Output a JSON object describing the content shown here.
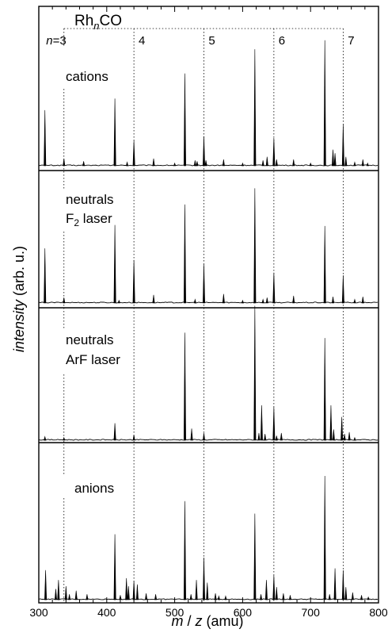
{
  "chart_data": {
    "type": "line",
    "xlabel": {
      "m": "m",
      "slash": " / ",
      "z": "z",
      "unit": " (amu)"
    },
    "ylabel": {
      "italic": "intensity",
      "rest": " (arb. u.)"
    },
    "xlim": [
      300,
      800
    ],
    "x_ticks": [
      300,
      400,
      500,
      600,
      700,
      800
    ],
    "x_tick_labels": [
      "300",
      "400",
      "500",
      "600",
      "700",
      "800"
    ],
    "cluster_label": {
      "base": "Rh",
      "sub": "n",
      "tail": "CO"
    },
    "n_labels": [
      {
        "text_prefix": "n",
        "text": "=3",
        "x": 337
      },
      {
        "text": "4",
        "x": 440
      },
      {
        "text": "5",
        "x": 543
      },
      {
        "text": "6",
        "x": 646
      },
      {
        "text": "7",
        "x": 748
      }
    ],
    "panels": [
      {
        "name": "cations",
        "labels": [
          "cations"
        ],
        "peaks": [
          [
            309,
            0.62
          ],
          [
            337,
            0.08
          ],
          [
            366,
            0.05
          ],
          [
            412,
            0.75
          ],
          [
            430,
            0.04
          ],
          [
            440,
            0.28
          ],
          [
            469,
            0.08
          ],
          [
            500,
            0.03
          ],
          [
            515,
            1.03
          ],
          [
            530,
            0.06
          ],
          [
            533,
            0.05
          ],
          [
            543,
            0.33
          ],
          [
            546,
            0.06
          ],
          [
            572,
            0.07
          ],
          [
            600,
            0.03
          ],
          [
            618,
            1.3
          ],
          [
            630,
            0.06
          ],
          [
            636,
            0.1
          ],
          [
            646,
            0.31
          ],
          [
            650,
            0.07
          ],
          [
            675,
            0.07
          ],
          [
            700,
            0.03
          ],
          [
            721,
            1.4
          ],
          [
            733,
            0.18
          ],
          [
            736,
            0.14
          ],
          [
            748,
            0.46
          ],
          [
            752,
            0.1
          ],
          [
            765,
            0.04
          ],
          [
            777,
            0.07
          ],
          [
            784,
            0.03
          ]
        ]
      },
      {
        "name": "neutrals F2 laser",
        "labels": [
          "neutrals"
        ],
        "laser": {
          "base": "F",
          "sub": "2",
          "tail": " laser"
        },
        "peaks": [
          [
            309,
            0.61
          ],
          [
            337,
            0.06
          ],
          [
            412,
            0.87
          ],
          [
            418,
            0.03
          ],
          [
            440,
            0.48
          ],
          [
            469,
            0.09
          ],
          [
            515,
            1.1
          ],
          [
            530,
            0.04
          ],
          [
            543,
            0.43
          ],
          [
            572,
            0.1
          ],
          [
            600,
            0.03
          ],
          [
            618,
            1.28
          ],
          [
            630,
            0.04
          ],
          [
            636,
            0.06
          ],
          [
            646,
            0.34
          ],
          [
            675,
            0.08
          ],
          [
            721,
            0.86
          ],
          [
            733,
            0.07
          ],
          [
            748,
            0.31
          ],
          [
            765,
            0.04
          ],
          [
            777,
            0.07
          ]
        ]
      },
      {
        "name": "neutrals ArF laser",
        "labels": [
          "neutrals",
          "ArF laser"
        ],
        "peaks": [
          [
            309,
            0.04
          ],
          [
            337,
            0.03
          ],
          [
            412,
            0.19
          ],
          [
            440,
            0.06
          ],
          [
            515,
            1.2
          ],
          [
            525,
            0.13
          ],
          [
            543,
            0.08
          ],
          [
            618,
            1.5
          ],
          [
            624,
            0.08
          ],
          [
            628,
            0.39
          ],
          [
            633,
            0.07
          ],
          [
            646,
            0.37
          ],
          [
            650,
            0.05
          ],
          [
            657,
            0.08
          ],
          [
            721,
            1.14
          ],
          [
            730,
            0.39
          ],
          [
            734,
            0.12
          ],
          [
            746,
            0.26
          ],
          [
            750,
            0.07
          ],
          [
            757,
            0.09
          ],
          [
            765,
            0.03
          ]
        ]
      },
      {
        "name": "anions",
        "labels": [
          "anions"
        ],
        "peaks": [
          [
            310,
            0.33
          ],
          [
            325,
            0.12
          ],
          [
            329,
            0.22
          ],
          [
            340,
            0.15
          ],
          [
            345,
            0.06
          ],
          [
            355,
            0.1
          ],
          [
            371,
            0.06
          ],
          [
            412,
            0.73
          ],
          [
            420,
            0.05
          ],
          [
            429,
            0.24
          ],
          [
            432,
            0.15
          ],
          [
            440,
            0.21
          ],
          [
            445,
            0.17
          ],
          [
            458,
            0.07
          ],
          [
            472,
            0.06
          ],
          [
            515,
            1.1
          ],
          [
            524,
            0.06
          ],
          [
            532,
            0.22
          ],
          [
            543,
            0.47
          ],
          [
            548,
            0.19
          ],
          [
            560,
            0.07
          ],
          [
            565,
            0.04
          ],
          [
            575,
            0.04
          ],
          [
            618,
            0.96
          ],
          [
            627,
            0.06
          ],
          [
            635,
            0.22
          ],
          [
            646,
            0.27
          ],
          [
            650,
            0.14
          ],
          [
            660,
            0.07
          ],
          [
            670,
            0.05
          ],
          [
            721,
            1.38
          ],
          [
            728,
            0.06
          ],
          [
            736,
            0.35
          ],
          [
            748,
            0.33
          ],
          [
            752,
            0.14
          ],
          [
            762,
            0.08
          ],
          [
            775,
            0.05
          ],
          [
            785,
            0.03
          ]
        ]
      }
    ],
    "n_marker_positions": [
      337,
      440,
      543,
      646,
      748
    ]
  }
}
